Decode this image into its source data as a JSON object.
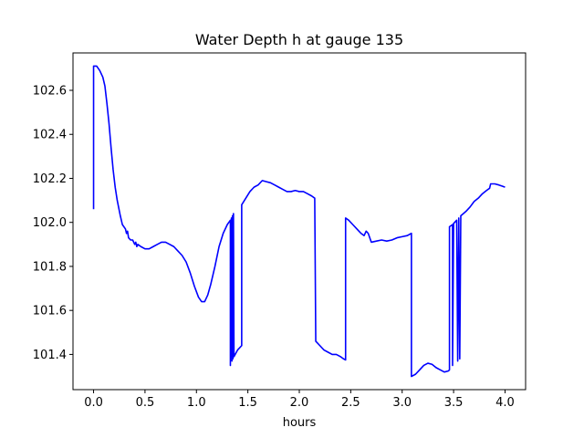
{
  "chart_data": {
    "type": "line",
    "title": "Water Depth h at gauge 135",
    "xlabel": "hours",
    "ylabel": "",
    "xlim": [
      -0.2,
      4.2
    ],
    "ylim": [
      101.24,
      102.77
    ],
    "xticks": [
      0.0,
      0.5,
      1.0,
      1.5,
      2.0,
      2.5,
      3.0,
      3.5,
      4.0
    ],
    "xtick_labels": [
      "0.0",
      "0.5",
      "1.0",
      "1.5",
      "2.0",
      "2.5",
      "3.0",
      "3.5",
      "4.0"
    ],
    "yticks": [
      101.4,
      101.6,
      101.8,
      102.0,
      102.2,
      102.4,
      102.6
    ],
    "ytick_labels": [
      "101.4",
      "101.6",
      "101.8",
      "102.0",
      "102.2",
      "102.4",
      "102.6"
    ],
    "grid": false,
    "series": [
      {
        "color": "#0000ff",
        "points": [
          [
            0.0,
            102.06
          ],
          [
            0.0,
            102.71
          ],
          [
            0.03,
            102.71
          ],
          [
            0.06,
            102.69
          ],
          [
            0.09,
            102.66
          ],
          [
            0.11,
            102.62
          ],
          [
            0.13,
            102.54
          ],
          [
            0.15,
            102.45
          ],
          [
            0.17,
            102.34
          ],
          [
            0.19,
            102.24
          ],
          [
            0.21,
            102.16
          ],
          [
            0.23,
            102.1
          ],
          [
            0.26,
            102.03
          ],
          [
            0.28,
            101.99
          ],
          [
            0.31,
            101.97
          ],
          [
            0.32,
            101.95
          ],
          [
            0.33,
            101.96
          ],
          [
            0.34,
            101.93
          ],
          [
            0.36,
            101.92
          ],
          [
            0.38,
            101.92
          ],
          [
            0.4,
            101.9
          ],
          [
            0.41,
            101.91
          ],
          [
            0.42,
            101.89
          ],
          [
            0.43,
            101.9
          ],
          [
            0.46,
            101.89
          ],
          [
            0.5,
            101.88
          ],
          [
            0.54,
            101.88
          ],
          [
            0.58,
            101.89
          ],
          [
            0.62,
            101.9
          ],
          [
            0.66,
            101.91
          ],
          [
            0.7,
            101.91
          ],
          [
            0.74,
            101.9
          ],
          [
            0.78,
            101.89
          ],
          [
            0.82,
            101.87
          ],
          [
            0.86,
            101.85
          ],
          [
            0.9,
            101.82
          ],
          [
            0.94,
            101.77
          ],
          [
            0.98,
            101.71
          ],
          [
            1.02,
            101.66
          ],
          [
            1.05,
            101.64
          ],
          [
            1.08,
            101.64
          ],
          [
            1.11,
            101.67
          ],
          [
            1.14,
            101.72
          ],
          [
            1.18,
            101.8
          ],
          [
            1.22,
            101.89
          ],
          [
            1.26,
            101.95
          ],
          [
            1.3,
            101.99
          ],
          [
            1.33,
            102.01
          ],
          [
            1.33,
            101.35
          ],
          [
            1.34,
            102.02
          ],
          [
            1.345,
            101.37
          ],
          [
            1.35,
            102.03
          ],
          [
            1.355,
            101.38
          ],
          [
            1.36,
            102.04
          ],
          [
            1.365,
            101.39
          ],
          [
            1.4,
            101.42
          ],
          [
            1.44,
            101.44
          ],
          [
            1.44,
            102.08
          ],
          [
            1.48,
            102.11
          ],
          [
            1.52,
            102.14
          ],
          [
            1.56,
            102.16
          ],
          [
            1.6,
            102.17
          ],
          [
            1.64,
            102.19
          ],
          [
            1.68,
            102.185
          ],
          [
            1.72,
            102.18
          ],
          [
            1.76,
            102.17
          ],
          [
            1.8,
            102.16
          ],
          [
            1.84,
            102.15
          ],
          [
            1.88,
            102.14
          ],
          [
            1.92,
            102.14
          ],
          [
            1.96,
            102.145
          ],
          [
            2.0,
            102.14
          ],
          [
            2.04,
            102.14
          ],
          [
            2.08,
            102.13
          ],
          [
            2.12,
            102.12
          ],
          [
            2.15,
            102.11
          ],
          [
            2.16,
            101.46
          ],
          [
            2.2,
            101.44
          ],
          [
            2.24,
            101.42
          ],
          [
            2.28,
            101.41
          ],
          [
            2.32,
            101.4
          ],
          [
            2.36,
            101.4
          ],
          [
            2.4,
            101.39
          ],
          [
            2.43,
            101.38
          ],
          [
            2.45,
            101.375
          ],
          [
            2.45,
            102.02
          ],
          [
            2.48,
            102.01
          ],
          [
            2.52,
            101.99
          ],
          [
            2.56,
            101.97
          ],
          [
            2.6,
            101.95
          ],
          [
            2.63,
            101.94
          ],
          [
            2.65,
            101.96
          ],
          [
            2.67,
            101.95
          ],
          [
            2.7,
            101.91
          ],
          [
            2.75,
            101.915
          ],
          [
            2.8,
            101.92
          ],
          [
            2.85,
            101.915
          ],
          [
            2.9,
            101.92
          ],
          [
            2.95,
            101.93
          ],
          [
            3.0,
            101.935
          ],
          [
            3.05,
            101.94
          ],
          [
            3.09,
            101.95
          ],
          [
            3.09,
            101.3
          ],
          [
            3.13,
            101.31
          ],
          [
            3.17,
            101.33
          ],
          [
            3.21,
            101.35
          ],
          [
            3.25,
            101.36
          ],
          [
            3.29,
            101.355
          ],
          [
            3.33,
            101.34
          ],
          [
            3.37,
            101.33
          ],
          [
            3.41,
            101.32
          ],
          [
            3.45,
            101.325
          ],
          [
            3.46,
            101.33
          ],
          [
            3.46,
            101.98
          ],
          [
            3.49,
            101.99
          ],
          [
            3.49,
            101.35
          ],
          [
            3.5,
            101.995
          ],
          [
            3.53,
            102.01
          ],
          [
            3.54,
            101.37
          ],
          [
            3.55,
            102.02
          ],
          [
            3.56,
            101.38
          ],
          [
            3.57,
            102.03
          ],
          [
            3.62,
            102.05
          ],
          [
            3.66,
            102.07
          ],
          [
            3.7,
            102.095
          ],
          [
            3.74,
            102.11
          ],
          [
            3.78,
            102.13
          ],
          [
            3.82,
            102.145
          ],
          [
            3.85,
            102.155
          ],
          [
            3.86,
            102.175
          ],
          [
            3.9,
            102.175
          ],
          [
            3.94,
            102.17
          ],
          [
            3.97,
            102.165
          ],
          [
            4.0,
            102.16
          ]
        ]
      }
    ]
  }
}
